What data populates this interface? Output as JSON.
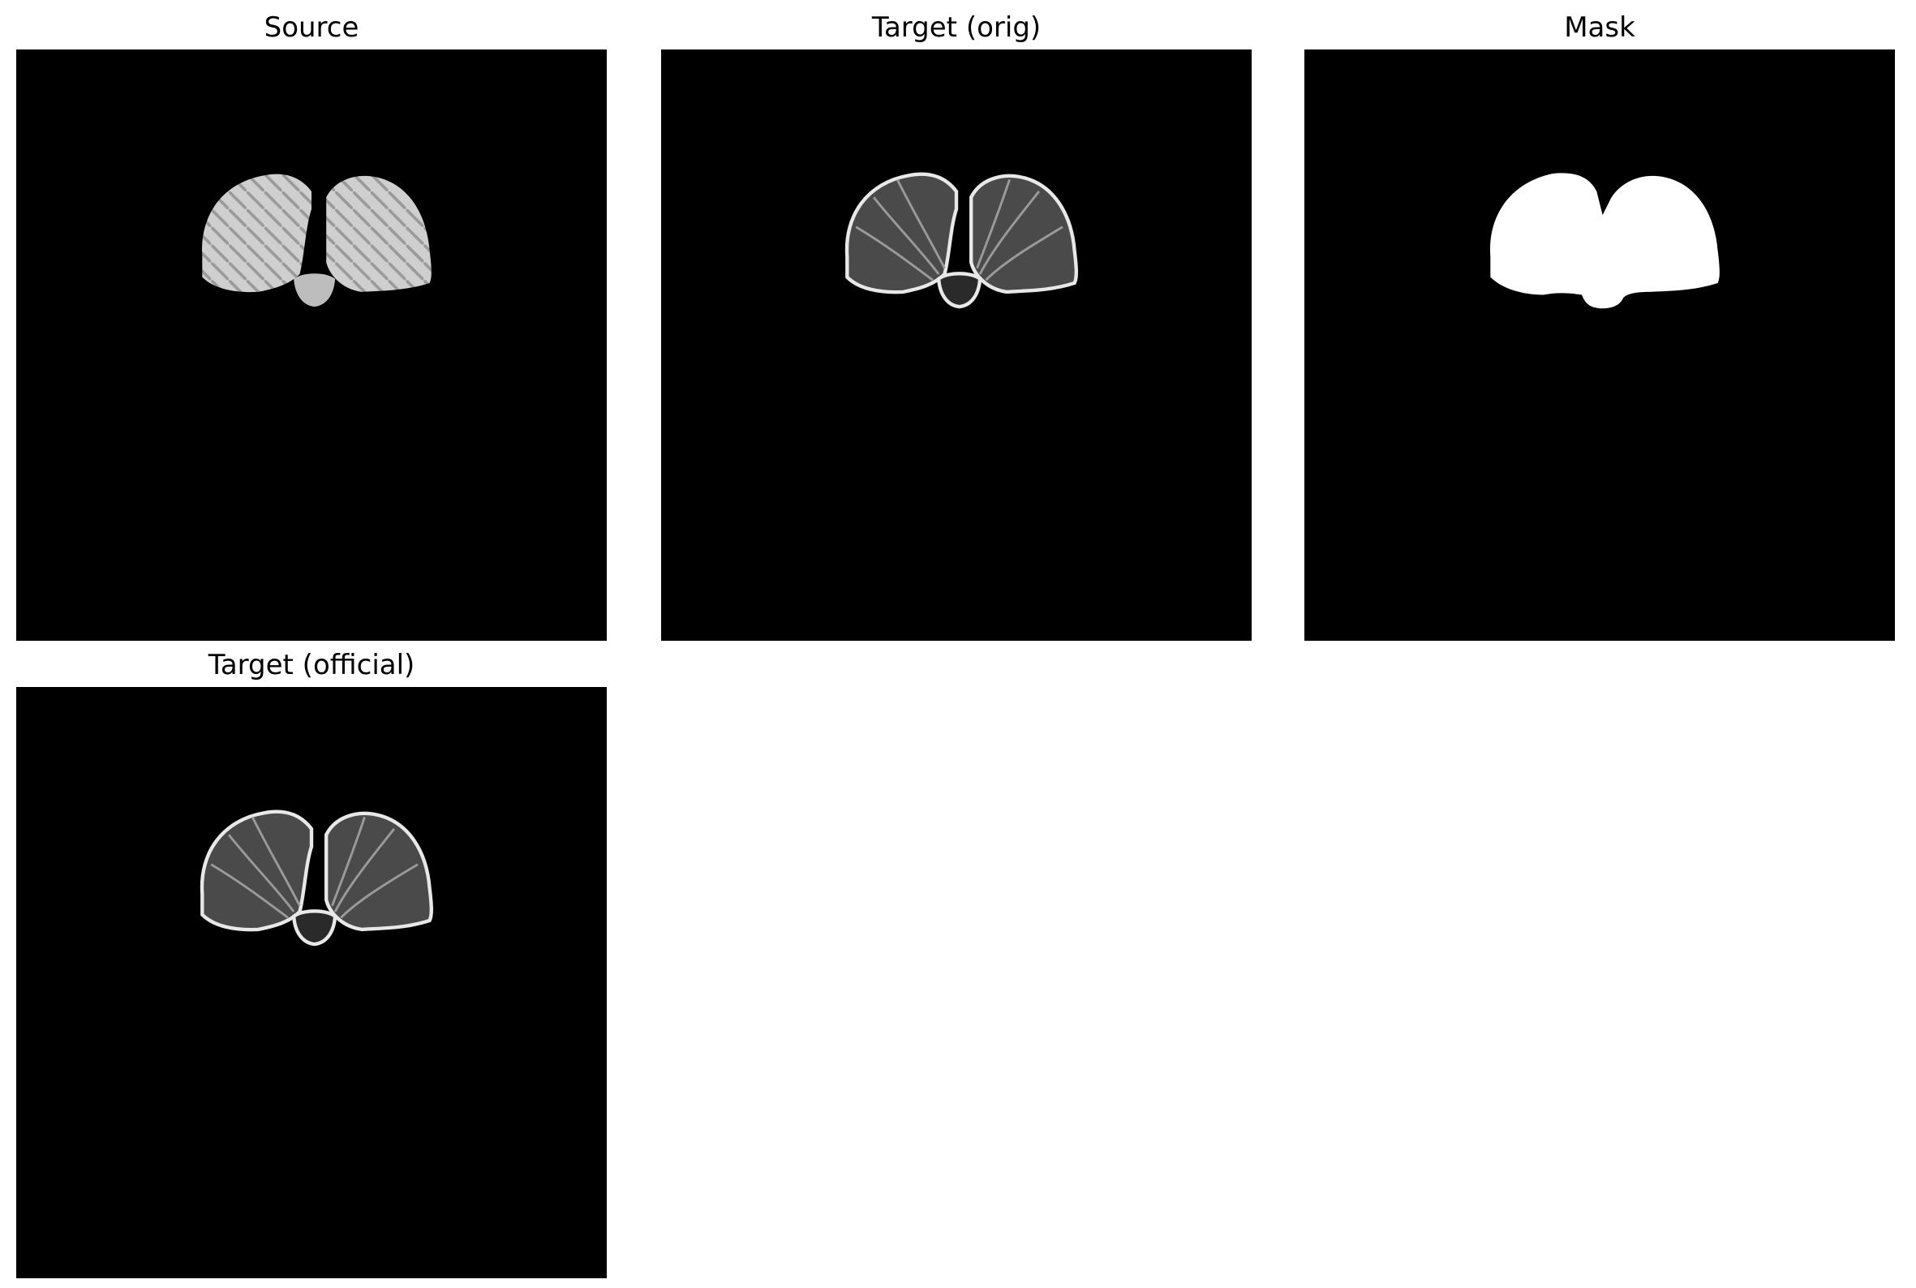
{
  "figure": {
    "panels": [
      {
        "id": "source",
        "title": "Source",
        "style": "source"
      },
      {
        "id": "target",
        "title": "Target (orig)",
        "style": "target"
      },
      {
        "id": "mask",
        "title": "Mask",
        "style": "mask"
      },
      {
        "id": "official",
        "title": "Target (official)",
        "style": "target"
      }
    ],
    "colors": {
      "background": "#000000",
      "mask_fill": "#ffffff",
      "source_tissue": "#cfcfcf",
      "target_tissue": "#4a4a4a",
      "target_highlight": "#e8e8e8"
    }
  }
}
